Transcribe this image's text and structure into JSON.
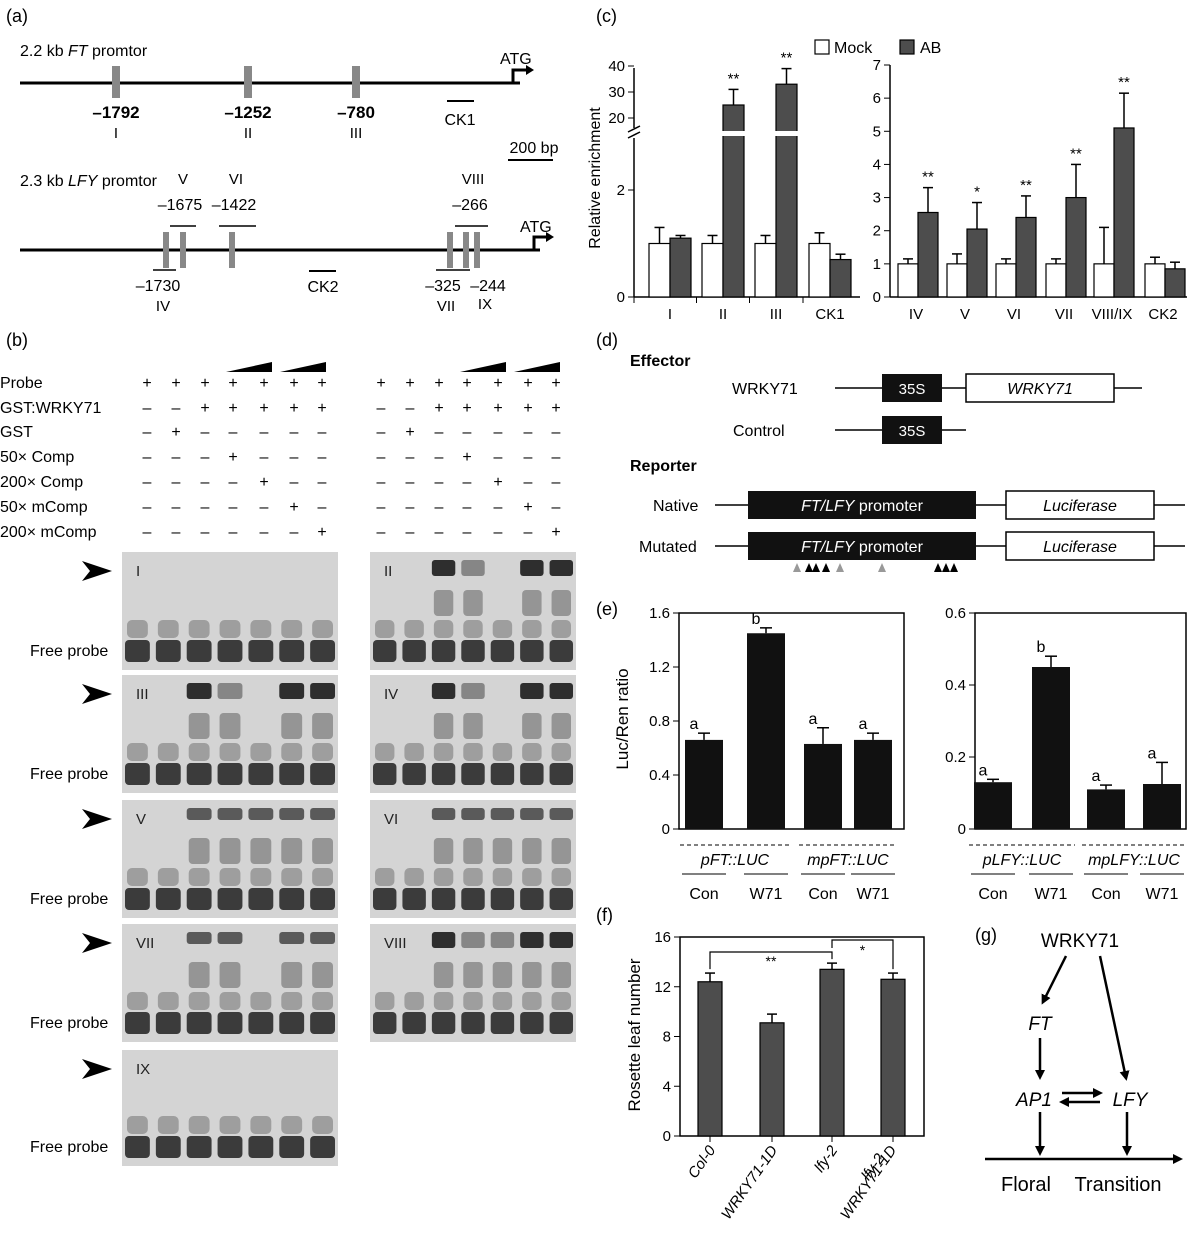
{
  "colors": {
    "dark_bar": "#4d4d4d",
    "black_bar": "#111111",
    "white_bar": "#ffffff",
    "site_box": "#888888",
    "gel_bg": "#d4d4d4",
    "band": "#2a2a2a"
  },
  "panels": {
    "a": {
      "label": "(a)",
      "ft_title_pre": "2.2  kb ",
      "ft_title_gene": "FT",
      "ft_title_post": " promtor",
      "ft_sites": [
        "–1792",
        "–1252",
        "–780"
      ],
      "ft_romans": [
        "I",
        "II",
        "III"
      ],
      "ck1": "CK1",
      "atg": "ATG",
      "scale": "200 bp",
      "lfy_title_pre": "2.3 kb  ",
      "lfy_title_gene": "LFY",
      "lfy_title_post": " promtor",
      "lfy_top_romans": [
        "V",
        "VI",
        "VIII"
      ],
      "lfy_top_nums": [
        "–1675",
        "–1422",
        "–266"
      ],
      "lfy_bottom_nums": [
        "–1730",
        "–325",
        "–244"
      ],
      "lfy_bottom_romans": [
        "IV",
        "VII",
        "IX"
      ],
      "ck2": "CK2"
    },
    "b": {
      "label": "(b)",
      "row_labels": [
        "Probe",
        "GST:WRKY71",
        "GST",
        "50× Comp",
        "200× Comp",
        "50× mComp",
        "200× mComp"
      ],
      "matrix": [
        [
          "+",
          "+",
          "+",
          "+",
          "+",
          "+",
          "+"
        ],
        [
          "–",
          "–",
          "+",
          "+",
          "+",
          "+",
          "+"
        ],
        [
          "–",
          "+",
          "–",
          "–",
          "–",
          "–",
          "–"
        ],
        [
          "–",
          "–",
          "–",
          "+",
          "–",
          "–",
          "–"
        ],
        [
          "–",
          "–",
          "–",
          "–",
          "+",
          "–",
          "–"
        ],
        [
          "–",
          "–",
          "–",
          "–",
          "–",
          "+",
          "–"
        ],
        [
          "–",
          "–",
          "–",
          "–",
          "–",
          "–",
          "+"
        ]
      ],
      "gels": [
        "I",
        "II",
        "III",
        "IV",
        "V",
        "VI",
        "VII",
        "VIII",
        "IX"
      ],
      "free_probe": "Free probe"
    },
    "c": {
      "label": "(c)",
      "legend": [
        "Mock",
        "AB"
      ],
      "ylabel": "Relative enrichment",
      "sig": "**",
      "sig_single": "*"
    },
    "d": {
      "label": "(d)",
      "effector": "Effector",
      "wrky71": "WRKY71",
      "p35s": "35S",
      "wrky71_gene": "WRKY71",
      "control": "Control",
      "reporter": "Reporter",
      "native": "Native",
      "mutated": "Mutated",
      "promoter_gene": "FT/LFY",
      "promoter_word": " promoter",
      "luciferase": "Luciferase"
    },
    "e": {
      "label": "(e)",
      "ylabel": "Luc/Ren ratio",
      "left_groups": [
        "pFT::LUC",
        "mpFT::LUC"
      ],
      "right_groups": [
        "pLFY::LUC",
        "mpLFY::LUC"
      ],
      "treatments": [
        "Con",
        "W71",
        "Con",
        "W71"
      ]
    },
    "f": {
      "label": "(f)",
      "ylabel": "Rosette leaf number",
      "sig_long": "**",
      "sig_short": "*"
    },
    "g": {
      "label": "(g)",
      "wrky71": "WRKY71",
      "ft": "FT",
      "ap1": "AP1",
      "lfy": "LFY",
      "floral": "Floral",
      "transition": "Transition"
    }
  },
  "chart_data": [
    {
      "type": "bar",
      "panel": "c-left",
      "categories": [
        "I",
        "II",
        "III",
        "CK1"
      ],
      "series": [
        {
          "name": "Mock",
          "values": [
            1.0,
            1.0,
            1.0,
            1.0
          ],
          "errors": [
            0.3,
            0.15,
            0.15,
            0.2
          ]
        },
        {
          "name": "AB",
          "values": [
            1.1,
            25,
            33,
            0.7
          ],
          "errors": [
            0.05,
            6,
            6,
            0.1
          ]
        }
      ],
      "ylabel": "Relative enrichment",
      "y_ticks_lower": [
        "0",
        "2"
      ],
      "y_ticks_upper": [
        "20",
        "30",
        "40"
      ],
      "axis_break": true,
      "significance": [
        "",
        "**",
        "**",
        ""
      ]
    },
    {
      "type": "bar",
      "panel": "c-right",
      "categories": [
        "IV",
        "V",
        "VI",
        "VII",
        "VIII/IX",
        "CK2"
      ],
      "series": [
        {
          "name": "Mock",
          "values": [
            1.0,
            1.0,
            1.0,
            1.0,
            1.0,
            1.0
          ],
          "errors": [
            0.15,
            0.3,
            0.15,
            0.15,
            1.1,
            0.2
          ]
        },
        {
          "name": "AB",
          "values": [
            2.55,
            2.05,
            2.4,
            3.0,
            5.1,
            0.85
          ],
          "errors": [
            0.75,
            0.8,
            0.65,
            1.0,
            1.05,
            0.2
          ]
        }
      ],
      "ylim": [
        0,
        7
      ],
      "y_ticks": [
        "0",
        "1",
        "2",
        "3",
        "4",
        "5",
        "6",
        "7"
      ],
      "significance": [
        "**",
        "*",
        "**",
        "**",
        "**",
        ""
      ]
    },
    {
      "type": "bar",
      "panel": "e-left",
      "categories": [
        "Con",
        "W71",
        "Con",
        "W71"
      ],
      "values": [
        0.66,
        1.45,
        0.63,
        0.66
      ],
      "errors": [
        0.05,
        0.04,
        0.12,
        0.05
      ],
      "letters": [
        "a",
        "b",
        "a",
        "a"
      ],
      "ylabel": "Luc/Ren ratio",
      "ylim": [
        0,
        1.6
      ],
      "y_ticks": [
        "0",
        "0.4",
        "0.8",
        "1.2",
        "1.6"
      ]
    },
    {
      "type": "bar",
      "panel": "e-right",
      "categories": [
        "Con",
        "W71",
        "Con",
        "W71"
      ],
      "values": [
        0.13,
        0.45,
        0.11,
        0.125
      ],
      "errors": [
        0.008,
        0.03,
        0.012,
        0.06
      ],
      "letters": [
        "a",
        "b",
        "a",
        "a"
      ],
      "ylim": [
        0,
        0.6
      ],
      "y_ticks": [
        "0",
        "0.2",
        "0.4",
        "0.6"
      ]
    },
    {
      "type": "bar",
      "panel": "f",
      "categories": [
        "Col-0",
        "WRKY71-1D",
        "lfy-2",
        "WRKY71-1D lfy-2"
      ],
      "values": [
        12.4,
        9.1,
        13.4,
        12.6
      ],
      "errors": [
        0.7,
        0.7,
        0.5,
        0.5
      ],
      "ylabel": "Rosette leaf number",
      "ylim": [
        0,
        16
      ],
      "y_ticks": [
        "0",
        "4",
        "8",
        "12",
        "16"
      ]
    }
  ]
}
